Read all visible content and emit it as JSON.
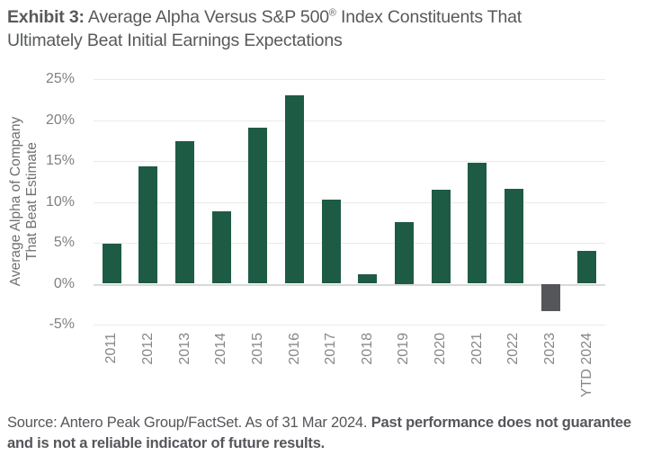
{
  "title": {
    "prefix": "Exhibit 3:",
    "part1": " Average Alpha Versus S&P 500",
    "reg_mark": "®",
    "part2": " Index Constituents That Ultimately Beat Initial Earnings Expectations"
  },
  "chart_data": {
    "type": "bar",
    "title": "Average Alpha Versus S&P 500® Index Constituents That Ultimately Beat Initial Earnings Expectations",
    "categories": [
      "2011",
      "2012",
      "2013",
      "2014",
      "2015",
      "2016",
      "2017",
      "2018",
      "2019",
      "2020",
      "2021",
      "2022",
      "2023",
      "YTD 2024"
    ],
    "values": [
      4.9,
      14.3,
      17.4,
      8.8,
      19.1,
      23.0,
      10.3,
      1.2,
      7.5,
      11.5,
      14.8,
      11.6,
      -3.4,
      4.0
    ],
    "ylabel_lines": [
      "Average Alpha of Company",
      "That Beat Estimate"
    ],
    "xlabel": "",
    "yticks": [
      25,
      20,
      15,
      10,
      5,
      0,
      -5
    ],
    "ytick_suffix": "%",
    "ylim": [
      -5,
      25
    ],
    "grid": true,
    "legend": "none",
    "bar_color_positive": "#1E5B45",
    "bar_color_negative": "#54565A",
    "gridline_color": "#EAEAEB",
    "axis_text_color": "#7E8084"
  },
  "footer": {
    "source_regular": "Source: Antero Peak Group/FactSet. As of 31 Mar 2024. ",
    "source_bold": "Past performance does not guarantee and is not a reliable indicator of future results."
  }
}
